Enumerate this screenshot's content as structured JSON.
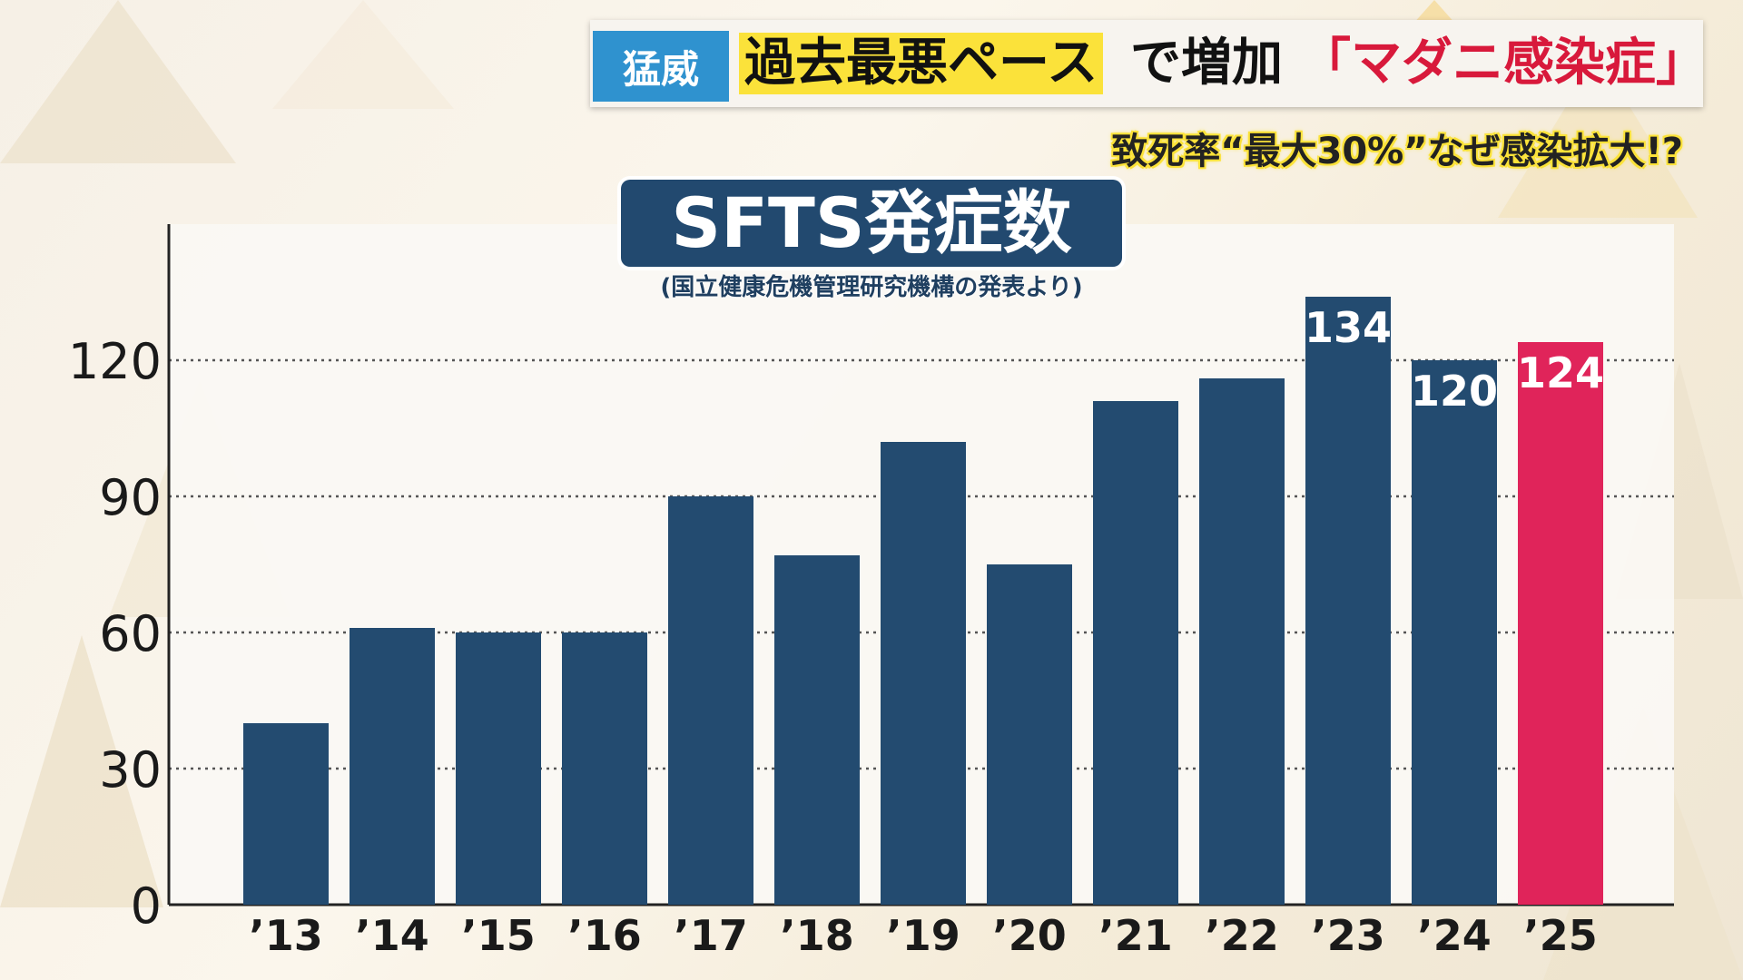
{
  "headline": {
    "tag": "猛威",
    "highlight": "過去最悪ペース",
    "middle": "で増加",
    "red": "「マダニ感染症」",
    "subline": "致死率“最大30%”なぜ感染拡大!?"
  },
  "colors": {
    "bar": "#234b70",
    "highlight_bar": "#e0245a",
    "tag": "#2f92cf",
    "highlight_bg": "#fbe23a"
  },
  "chart_data": {
    "type": "bar",
    "title": "SFTS発症数",
    "subtitle": "(国立健康危機管理研究機構の発表より)",
    "categories": [
      "’13",
      "’14",
      "’15",
      "’16",
      "’17",
      "’18",
      "’19",
      "’20",
      "’21",
      "’22",
      "’23",
      "’24",
      "’25"
    ],
    "values": [
      40,
      61,
      60,
      60,
      90,
      77,
      102,
      75,
      111,
      116,
      134,
      120,
      124
    ],
    "data_labels": [
      null,
      null,
      null,
      null,
      null,
      null,
      null,
      null,
      null,
      null,
      "134",
      "120",
      "124"
    ],
    "highlight_index": 12,
    "ylim": [
      0,
      150
    ],
    "yticks": [
      0,
      30,
      60,
      90,
      120
    ],
    "grid": true
  }
}
